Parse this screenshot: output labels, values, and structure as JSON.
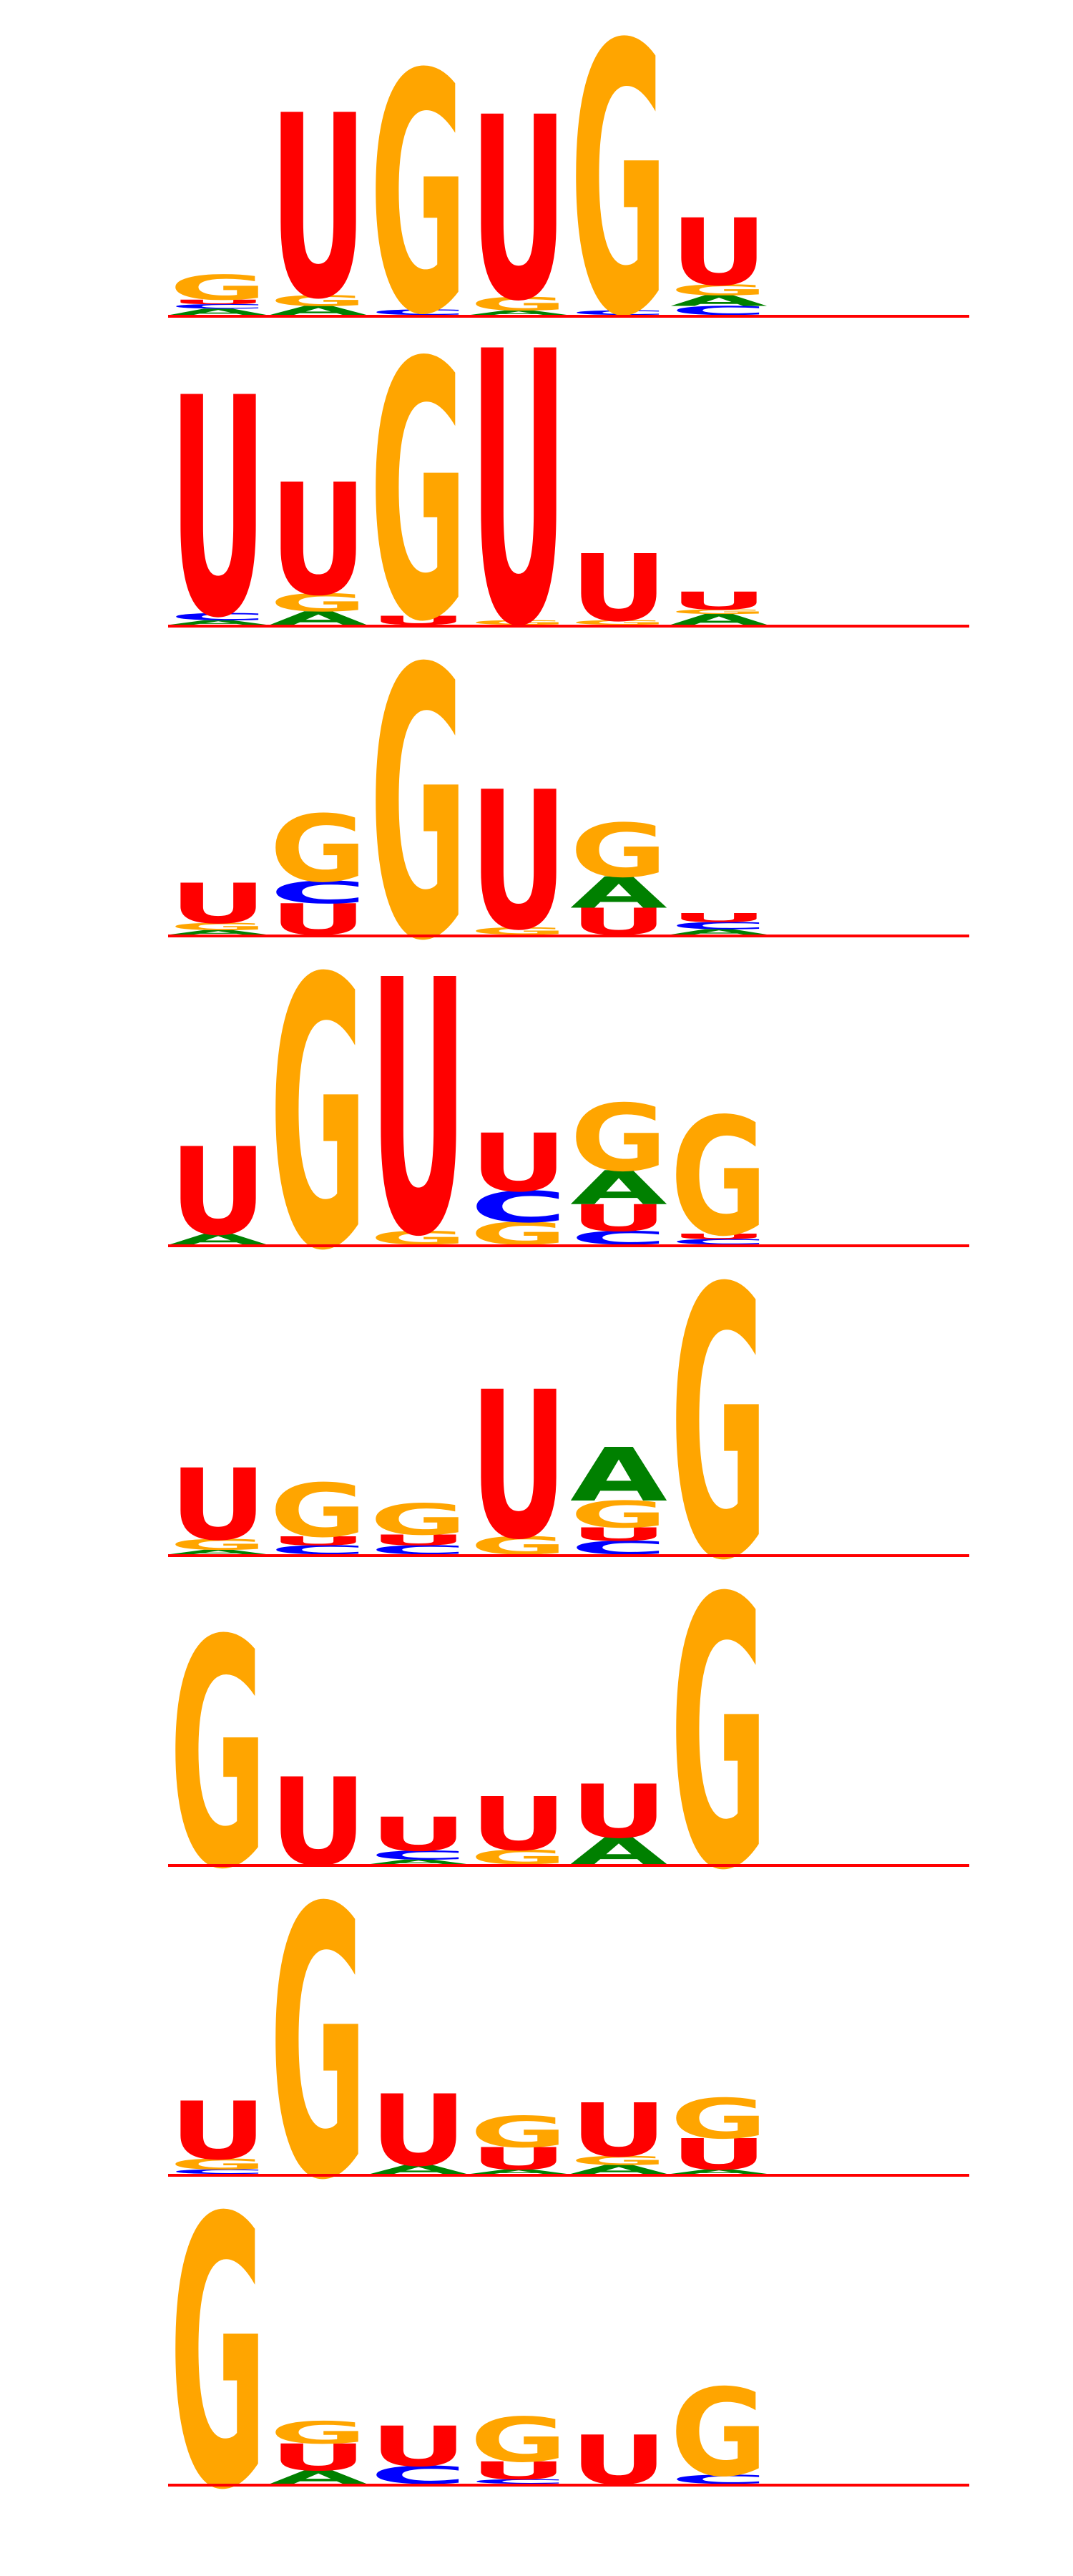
{
  "colors": {
    "A": "#008000",
    "C": "#0000ff",
    "G": "#ffa500",
    "U": "#ff0000",
    "baseline": "#ff0000"
  },
  "motifs": [
    {
      "columns": [
        [
          {
            "l": "A",
            "h": 0.07
          },
          {
            "l": "C",
            "h": 0.05
          },
          {
            "l": "U",
            "h": 0.05
          },
          {
            "l": "G",
            "h": 0.28
          }
        ],
        [
          {
            "l": "A",
            "h": 0.1
          },
          {
            "l": "G",
            "h": 0.12
          },
          {
            "l": "U",
            "h": 2.05
          }
        ],
        [
          {
            "l": "C",
            "h": 0.06
          },
          {
            "l": "G",
            "h": 2.68
          }
        ],
        [
          {
            "l": "A",
            "h": 0.05
          },
          {
            "l": "G",
            "h": 0.15
          },
          {
            "l": "U",
            "h": 2.05
          }
        ],
        [
          {
            "l": "C",
            "h": 0.05
          },
          {
            "l": "G",
            "h": 3.02
          }
        ],
        [
          {
            "l": "C",
            "h": 0.1
          },
          {
            "l": "A",
            "h": 0.12
          },
          {
            "l": "G",
            "h": 0.12
          },
          {
            "l": "U",
            "h": 0.75
          }
        ]
      ]
    },
    {
      "columns": [
        [
          {
            "l": "A",
            "h": 0.05
          },
          {
            "l": "C",
            "h": 0.08
          },
          {
            "l": "U",
            "h": 2.45
          }
        ],
        [
          {
            "l": "A",
            "h": 0.15
          },
          {
            "l": "G",
            "h": 0.2
          },
          {
            "l": "U",
            "h": 1.25
          }
        ],
        [
          {
            "l": "U",
            "h": 0.1
          },
          {
            "l": "G",
            "h": 2.88
          }
        ],
        [
          {
            "l": "G",
            "h": 0.05
          },
          {
            "l": "U",
            "h": 3.05
          }
        ],
        [
          {
            "l": "G",
            "h": 0.05
          },
          {
            "l": "U",
            "h": 0.75
          }
        ],
        [
          {
            "l": "A",
            "h": 0.12
          },
          {
            "l": "G",
            "h": 0.05
          },
          {
            "l": "U",
            "h": 0.2
          }
        ]
      ]
    },
    {
      "columns": [
        [
          {
            "l": "A",
            "h": 0.05
          },
          {
            "l": "G",
            "h": 0.08
          },
          {
            "l": "U",
            "h": 0.45
          }
        ],
        [
          {
            "l": "U",
            "h": 0.35
          },
          {
            "l": "C",
            "h": 0.25
          },
          {
            "l": "G",
            "h": 0.75
          }
        ],
        [
          {
            "l": "G",
            "h": 3.02
          }
        ],
        [
          {
            "l": "G",
            "h": 0.08
          },
          {
            "l": "U",
            "h": 1.55
          }
        ],
        [
          {
            "l": "U",
            "h": 0.3
          },
          {
            "l": "A",
            "h": 0.35
          },
          {
            "l": "G",
            "h": 0.6
          }
        ],
        [
          {
            "l": "A",
            "h": 0.06
          },
          {
            "l": "C",
            "h": 0.08
          },
          {
            "l": "U",
            "h": 0.1
          }
        ]
      ]
    },
    {
      "columns": [
        [
          {
            "l": "A",
            "h": 0.12
          },
          {
            "l": "U",
            "h": 0.98
          }
        ],
        [
          {
            "l": "G",
            "h": 3.02
          }
        ],
        [
          {
            "l": "G",
            "h": 0.15
          },
          {
            "l": "U",
            "h": 2.85
          }
        ],
        [
          {
            "l": "G",
            "h": 0.25
          },
          {
            "l": "C",
            "h": 0.35
          },
          {
            "l": "U",
            "h": 0.65
          }
        ],
        [
          {
            "l": "C",
            "h": 0.15
          },
          {
            "l": "U",
            "h": 0.3
          },
          {
            "l": "A",
            "h": 0.38
          },
          {
            "l": "G",
            "h": 0.75
          }
        ],
        [
          {
            "l": "C",
            "h": 0.06
          },
          {
            "l": "U",
            "h": 0.06
          },
          {
            "l": "G",
            "h": 1.32
          }
        ]
      ]
    },
    {
      "columns": [
        [
          {
            "l": "A",
            "h": 0.05
          },
          {
            "l": "G",
            "h": 0.12
          },
          {
            "l": "U",
            "h": 0.8
          }
        ],
        [
          {
            "l": "C",
            "h": 0.1
          },
          {
            "l": "U",
            "h": 0.1
          },
          {
            "l": "G",
            "h": 0.6
          }
        ],
        [
          {
            "l": "C",
            "h": 0.1
          },
          {
            "l": "U",
            "h": 0.12
          },
          {
            "l": "G",
            "h": 0.35
          }
        ],
        [
          {
            "l": "G",
            "h": 0.2
          },
          {
            "l": "U",
            "h": 1.65
          }
        ],
        [
          {
            "l": "C",
            "h": 0.15
          },
          {
            "l": "U",
            "h": 0.15
          },
          {
            "l": "G",
            "h": 0.3
          },
          {
            "l": "A",
            "h": 0.6
          }
        ],
        [
          {
            "l": "G",
            "h": 3.02
          }
        ]
      ]
    },
    {
      "columns": [
        [
          {
            "l": "G",
            "h": 2.55
          }
        ],
        [
          {
            "l": "U",
            "h": 0.98
          }
        ],
        [
          {
            "l": "A",
            "h": 0.05
          },
          {
            "l": "C",
            "h": 0.1
          },
          {
            "l": "U",
            "h": 0.38
          }
        ],
        [
          {
            "l": "G",
            "h": 0.16
          },
          {
            "l": "U",
            "h": 0.6
          }
        ],
        [
          {
            "l": "A",
            "h": 0.3
          },
          {
            "l": "U",
            "h": 0.6
          }
        ],
        [
          {
            "l": "G",
            "h": 3.02
          }
        ]
      ]
    },
    {
      "columns": [
        [
          {
            "l": "C",
            "h": 0.05
          },
          {
            "l": "G",
            "h": 0.12
          },
          {
            "l": "U",
            "h": 0.65
          }
        ],
        [
          {
            "l": "G",
            "h": 3.02
          }
        ],
        [
          {
            "l": "A",
            "h": 0.1
          },
          {
            "l": "U",
            "h": 0.8
          }
        ],
        [
          {
            "l": "A",
            "h": 0.05
          },
          {
            "l": "U",
            "h": 0.25
          },
          {
            "l": "G",
            "h": 0.35
          }
        ],
        [
          {
            "l": "A",
            "h": 0.1
          },
          {
            "l": "G",
            "h": 0.1
          },
          {
            "l": "U",
            "h": 0.6
          }
        ],
        [
          {
            "l": "A",
            "h": 0.05
          },
          {
            "l": "U",
            "h": 0.35
          },
          {
            "l": "G",
            "h": 0.45
          }
        ]
      ]
    },
    {
      "columns": [
        [
          {
            "l": "G",
            "h": 3.02
          }
        ],
        [
          {
            "l": "A",
            "h": 0.15
          },
          {
            "l": "U",
            "h": 0.3
          },
          {
            "l": "G",
            "h": 0.25
          }
        ],
        [
          {
            "l": "C",
            "h": 0.2
          },
          {
            "l": "U",
            "h": 0.45
          }
        ],
        [
          {
            "l": "C",
            "h": 0.05
          },
          {
            "l": "U",
            "h": 0.2
          },
          {
            "l": "G",
            "h": 0.5
          }
        ],
        [
          {
            "l": "U",
            "h": 0.55
          }
        ],
        [
          {
            "l": "C",
            "h": 0.1
          },
          {
            "l": "G",
            "h": 0.98
          }
        ]
      ]
    }
  ]
}
